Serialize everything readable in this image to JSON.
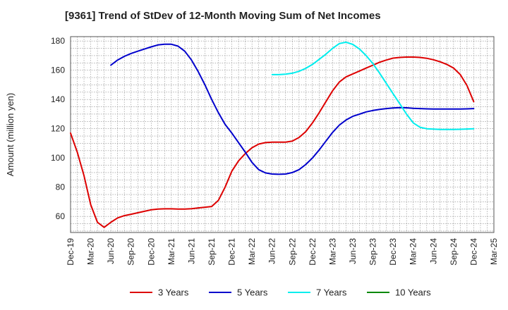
{
  "chart_data": {
    "type": "line",
    "title": "[9361]  Trend of StDev of 12-Month Moving Sum of Net Incomes",
    "ylabel": "Amount (million yen)",
    "xlabel": "",
    "ylim": [
      49,
      183
    ],
    "yticks": [
      60,
      80,
      100,
      120,
      140,
      160,
      180
    ],
    "x_start": "Dec-19",
    "x_labels": [
      "Dec-19",
      "Mar-20",
      "Jun-20",
      "Sep-20",
      "Dec-20",
      "Mar-21",
      "Jun-21",
      "Sep-21",
      "Dec-21",
      "Mar-22",
      "Jun-22",
      "Sep-22",
      "Dec-22",
      "Mar-23",
      "Jun-23",
      "Sep-23",
      "Dec-23",
      "Mar-24",
      "Jun-24",
      "Sep-24",
      "Dec-24",
      "Mar-25"
    ],
    "grid": true,
    "legend_position": "bottom",
    "series": [
      {
        "name": "3 Years",
        "color": "#dd0000",
        "points": [
          [
            "Dec-19",
            117
          ],
          [
            "Jan-20",
            104
          ],
          [
            "Feb-20",
            88
          ],
          [
            "Mar-20",
            68
          ],
          [
            "Apr-20",
            56
          ],
          [
            "May-20",
            52.5
          ],
          [
            "Jun-20",
            56
          ],
          [
            "Jul-20",
            59
          ],
          [
            "Aug-20",
            60.5
          ],
          [
            "Sep-20",
            61.5
          ],
          [
            "Oct-20",
            62.5
          ],
          [
            "Nov-20",
            63.5
          ],
          [
            "Dec-20",
            64.5
          ],
          [
            "Jan-21",
            65
          ],
          [
            "Feb-21",
            65.2
          ],
          [
            "Mar-21",
            65.2
          ],
          [
            "Apr-21",
            65
          ],
          [
            "May-21",
            65
          ],
          [
            "Jun-21",
            65.3
          ],
          [
            "Jul-21",
            65.8
          ],
          [
            "Aug-21",
            66.3
          ],
          [
            "Sep-21",
            66.8
          ],
          [
            "Oct-21",
            71
          ],
          [
            "Nov-21",
            80
          ],
          [
            "Dec-21",
            91
          ],
          [
            "Jan-22",
            98
          ],
          [
            "Feb-22",
            103
          ],
          [
            "Mar-22",
            107
          ],
          [
            "Apr-22",
            109.5
          ],
          [
            "May-22",
            110.5
          ],
          [
            "Jun-22",
            110.8
          ],
          [
            "Jul-22",
            110.8
          ],
          [
            "Aug-22",
            110.8
          ],
          [
            "Sep-22",
            111.5
          ],
          [
            "Oct-22",
            114
          ],
          [
            "Nov-22",
            118
          ],
          [
            "Dec-22",
            124
          ],
          [
            "Jan-23",
            131
          ],
          [
            "Feb-23",
            138.5
          ],
          [
            "Mar-23",
            146
          ],
          [
            "Apr-23",
            152
          ],
          [
            "May-23",
            155.5
          ],
          [
            "Jun-23",
            157.5
          ],
          [
            "Jul-23",
            159.5
          ],
          [
            "Aug-23",
            161.5
          ],
          [
            "Sep-23",
            163.5
          ],
          [
            "Oct-23",
            165.5
          ],
          [
            "Nov-23",
            167
          ],
          [
            "Dec-23",
            168.3
          ],
          [
            "Jan-24",
            168.8
          ],
          [
            "Feb-24",
            169
          ],
          [
            "Mar-24",
            169
          ],
          [
            "Apr-24",
            168.8
          ],
          [
            "May-24",
            168.2
          ],
          [
            "Jun-24",
            167.2
          ],
          [
            "Jul-24",
            165.8
          ],
          [
            "Aug-24",
            164
          ],
          [
            "Sep-24",
            161.5
          ],
          [
            "Oct-24",
            157
          ],
          [
            "Nov-24",
            149.5
          ],
          [
            "Dec-24",
            138.5
          ]
        ]
      },
      {
        "name": "5 Years",
        "color": "#0000cc",
        "points": [
          [
            "Jun-20",
            163.5
          ],
          [
            "Jul-20",
            167
          ],
          [
            "Aug-20",
            169.5
          ],
          [
            "Sep-20",
            171.5
          ],
          [
            "Oct-20",
            173
          ],
          [
            "Nov-20",
            174.5
          ],
          [
            "Dec-20",
            176
          ],
          [
            "Jan-21",
            177.3
          ],
          [
            "Feb-21",
            177.8
          ],
          [
            "Mar-21",
            177.8
          ],
          [
            "Apr-21",
            176.5
          ],
          [
            "May-21",
            173
          ],
          [
            "Jun-21",
            167
          ],
          [
            "Jul-21",
            159
          ],
          [
            "Aug-21",
            150
          ],
          [
            "Sep-21",
            140
          ],
          [
            "Oct-21",
            131
          ],
          [
            "Nov-21",
            123
          ],
          [
            "Dec-21",
            117
          ],
          [
            "Jan-22",
            110.5
          ],
          [
            "Feb-22",
            104
          ],
          [
            "Mar-22",
            97
          ],
          [
            "Apr-22",
            92
          ],
          [
            "May-22",
            89.8
          ],
          [
            "Jun-22",
            89
          ],
          [
            "Jul-22",
            88.8
          ],
          [
            "Aug-22",
            89
          ],
          [
            "Sep-22",
            90
          ],
          [
            "Oct-22",
            92
          ],
          [
            "Nov-22",
            95.5
          ],
          [
            "Dec-22",
            100
          ],
          [
            "Jan-23",
            105.5
          ],
          [
            "Feb-23",
            111.5
          ],
          [
            "Mar-23",
            117.5
          ],
          [
            "Apr-23",
            122.5
          ],
          [
            "May-23",
            126
          ],
          [
            "Jun-23",
            128.5
          ],
          [
            "Jul-23",
            130
          ],
          [
            "Aug-23",
            131.5
          ],
          [
            "Sep-23",
            132.5
          ],
          [
            "Oct-23",
            133.2
          ],
          [
            "Nov-23",
            133.8
          ],
          [
            "Dec-23",
            134.2
          ],
          [
            "Jan-24",
            134.4
          ],
          [
            "Feb-24",
            134.3
          ],
          [
            "Mar-24",
            134
          ],
          [
            "Apr-24",
            133.8
          ],
          [
            "May-24",
            133.6
          ],
          [
            "Jun-24",
            133.5
          ],
          [
            "Jul-24",
            133.5
          ],
          [
            "Aug-24",
            133.5
          ],
          [
            "Sep-24",
            133.5
          ],
          [
            "Oct-24",
            133.5
          ],
          [
            "Nov-24",
            133.6
          ],
          [
            "Dec-24",
            133.8
          ]
        ]
      },
      {
        "name": "7 Years",
        "color": "#00eeee",
        "points": [
          [
            "Jun-22",
            157
          ],
          [
            "Jul-22",
            157
          ],
          [
            "Aug-22",
            157.3
          ],
          [
            "Sep-22",
            158
          ],
          [
            "Oct-22",
            159.3
          ],
          [
            "Nov-22",
            161.3
          ],
          [
            "Dec-22",
            164
          ],
          [
            "Jan-23",
            167.5
          ],
          [
            "Feb-23",
            171
          ],
          [
            "Mar-23",
            175
          ],
          [
            "Apr-23",
            178.3
          ],
          [
            "May-23",
            179.2
          ],
          [
            "Jun-23",
            177.7
          ],
          [
            "Jul-23",
            174.5
          ],
          [
            "Aug-23",
            170
          ],
          [
            "Sep-23",
            164.5
          ],
          [
            "Oct-23",
            158
          ],
          [
            "Nov-23",
            151
          ],
          [
            "Dec-23",
            144
          ],
          [
            "Jan-24",
            137
          ],
          [
            "Feb-24",
            130
          ],
          [
            "Mar-24",
            124
          ],
          [
            "Apr-24",
            121
          ],
          [
            "May-24",
            120
          ],
          [
            "Jun-24",
            119.7
          ],
          [
            "Jul-24",
            119.5
          ],
          [
            "Aug-24",
            119.5
          ],
          [
            "Sep-24",
            119.5
          ],
          [
            "Oct-24",
            119.6
          ],
          [
            "Nov-24",
            119.8
          ],
          [
            "Dec-24",
            120
          ]
        ]
      },
      {
        "name": "10 Years",
        "color": "#008800",
        "points": []
      }
    ]
  }
}
